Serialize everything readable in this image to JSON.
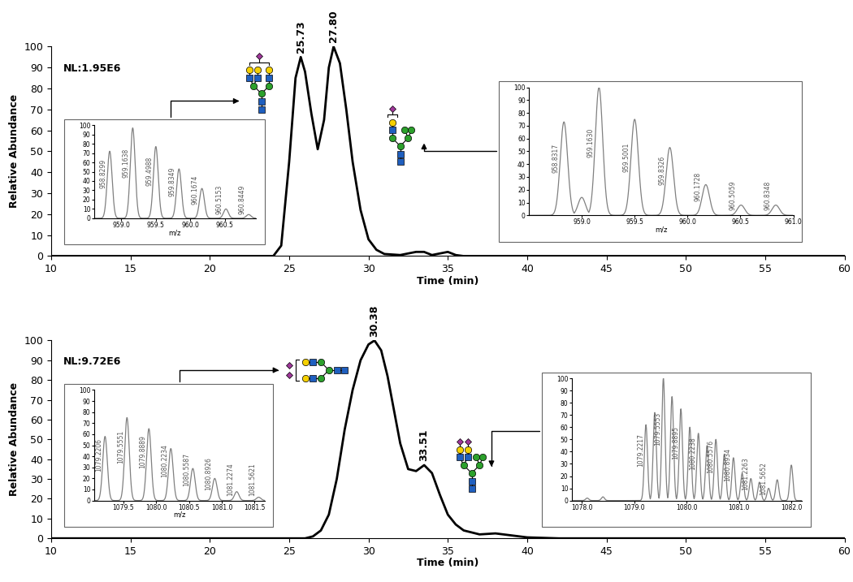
{
  "chart_data": [
    {
      "type": "line",
      "color": "#000000",
      "xlabel": "Time (min)",
      "ylabel": "Relative Abundance",
      "annotations": [
        {
          "text": "NL:1.95E6"
        }
      ],
      "x": [
        10,
        24,
        24.5,
        25,
        25.4,
        25.73,
        26.0,
        26.4,
        26.8,
        27.2,
        27.5,
        27.8,
        28.2,
        28.6,
        29.0,
        29.5,
        30.0,
        30.5,
        31,
        32,
        33,
        33.5,
        34,
        35,
        35.5,
        36,
        40,
        60
      ],
      "values": [
        0,
        0,
        5,
        45,
        85,
        95,
        88,
        68,
        51,
        65,
        90,
        100,
        92,
        70,
        45,
        22,
        8,
        3,
        1,
        0.5,
        2,
        2,
        0.5,
        2,
        0.5,
        0,
        0,
        0
      ],
      "peak_labels": [
        {
          "x": 25.73,
          "y": 95,
          "label": "25.73"
        },
        {
          "x": 27.8,
          "y": 100,
          "label": "27.80"
        }
      ],
      "xlim": [
        10,
        60
      ],
      "xticks": [
        10,
        15,
        20,
        25,
        30,
        35,
        40,
        45,
        50,
        55,
        60
      ],
      "ylim": [
        0,
        100
      ],
      "yticks": [
        0,
        10,
        20,
        30,
        40,
        50,
        60,
        70,
        80,
        90,
        100
      ],
      "insets": [
        {
          "type": "spectrum",
          "xlabel": "m/z",
          "xlim": [
            958.6,
            960.95
          ],
          "xticks": [
            959.0,
            959.5,
            960.0,
            960.5
          ],
          "ylim": [
            0,
            100
          ],
          "yticks": [
            0,
            10,
            20,
            30,
            40,
            50,
            60,
            70,
            80,
            90,
            100
          ],
          "mz": [
            958.8299,
            959.1638,
            959.4988,
            959.8349,
            960.1674,
            960.5153,
            960.8449
          ],
          "values": [
            72,
            97,
            77,
            53,
            32,
            10,
            4
          ],
          "labels": [
            "958.8299",
            "959.1638",
            "959.4988",
            "959.8349",
            "960.1674",
            "960.5153",
            "960.8449"
          ]
        },
        {
          "type": "spectrum",
          "xlabel": "m/z",
          "xlim": [
            958.5,
            961.0
          ],
          "xticks": [
            959.0,
            959.5,
            960.0,
            960.5,
            961.0
          ],
          "ylim": [
            0,
            100
          ],
          "yticks": [
            0,
            10,
            20,
            30,
            40,
            50,
            60,
            70,
            80,
            90,
            100
          ],
          "mz": [
            958.8317,
            959.0,
            959.163,
            959.5001,
            959.8326,
            960.1728,
            960.5059,
            960.8348
          ],
          "values": [
            73,
            14,
            100,
            75,
            53,
            24,
            8,
            8
          ],
          "labels": [
            "958.8317",
            null,
            "959.1630",
            "959.5001",
            "959.8326",
            "960.1728",
            "960.5059",
            "960.8348"
          ]
        }
      ]
    },
    {
      "type": "line",
      "color": "#000000",
      "xlabel": "Time (min)",
      "ylabel": "Relative Abundance",
      "annotations": [
        {
          "text": "NL:9.72E6"
        }
      ],
      "x": [
        10,
        26,
        26.5,
        27,
        27.5,
        28,
        28.5,
        29,
        29.5,
        30,
        30.38,
        30.8,
        31.2,
        31.6,
        32,
        32.5,
        33,
        33.51,
        34,
        34.5,
        35,
        35.5,
        36,
        37,
        38,
        39,
        40,
        42,
        60
      ],
      "values": [
        0,
        0,
        1,
        4,
        12,
        30,
        55,
        75,
        90,
        98,
        100,
        95,
        82,
        65,
        48,
        35,
        34,
        37,
        33,
        22,
        12,
        7,
        4,
        2,
        2.5,
        1.5,
        0.5,
        0,
        0
      ],
      "peak_labels": [
        {
          "x": 30.38,
          "y": 100,
          "label": "30.38"
        },
        {
          "x": 33.51,
          "y": 37,
          "label": "33.51"
        }
      ],
      "xlim": [
        10,
        60
      ],
      "xticks": [
        10,
        15,
        20,
        25,
        30,
        35,
        40,
        45,
        50,
        55,
        60
      ],
      "ylim": [
        0,
        100
      ],
      "yticks": [
        0,
        10,
        20,
        30,
        40,
        50,
        60,
        70,
        80,
        90,
        100
      ],
      "insets": [
        {
          "type": "spectrum",
          "xlabel": "m/z",
          "xlim": [
            1079.05,
            1081.65
          ],
          "xticks": [
            1079.5,
            1080.0,
            1080.5,
            1081.0,
            1081.5
          ],
          "ylim": [
            0,
            100
          ],
          "yticks": [
            0,
            10,
            20,
            30,
            40,
            50,
            60,
            70,
            80,
            90,
            100
          ],
          "mz": [
            1079.2206,
            1079.5551,
            1079.8889,
            1080.2234,
            1080.5587,
            1080.8926,
            1081.2274,
            1081.5621
          ],
          "values": [
            58,
            75,
            65,
            47,
            29,
            20,
            8,
            3
          ],
          "labels": [
            "1079.2206",
            "1079.5551",
            "1079.8889",
            "1080.2234",
            "1080.5587",
            "1080.8926",
            "1081.2274",
            "1081.5621"
          ]
        },
        {
          "type": "spectrum",
          "xlabel": null,
          "xlim": [
            1077.8,
            1082.2
          ],
          "xticks": [
            1078.0,
            1079.0,
            1080.0,
            1081.0,
            1082.0
          ],
          "ylim": [
            0,
            100
          ],
          "yticks": [
            0,
            10,
            20,
            30,
            40,
            50,
            60,
            70,
            80,
            90,
            100
          ],
          "mz": [
            1078.1,
            1078.4,
            1079.2217,
            1079.39,
            1079.5553,
            1079.72,
            1079.8895,
            1080.06,
            1080.2238,
            1080.39,
            1080.5576,
            1080.72,
            1080.8934,
            1081.06,
            1081.2263,
            1081.39,
            1081.5652,
            1081.73,
            1082.0
          ],
          "values": [
            2,
            3,
            62,
            72,
            100,
            85,
            75,
            60,
            55,
            45,
            50,
            38,
            35,
            22,
            18,
            15,
            10,
            17,
            29
          ],
          "labels": [
            null,
            null,
            "1079.2217",
            null,
            "1079.5553",
            null,
            "1079.8895",
            null,
            "1080.2238",
            null,
            "1080.5576",
            null,
            "1080.8934",
            null,
            "1081.2263",
            null,
            "1081.5652",
            null,
            null
          ]
        }
      ]
    }
  ]
}
